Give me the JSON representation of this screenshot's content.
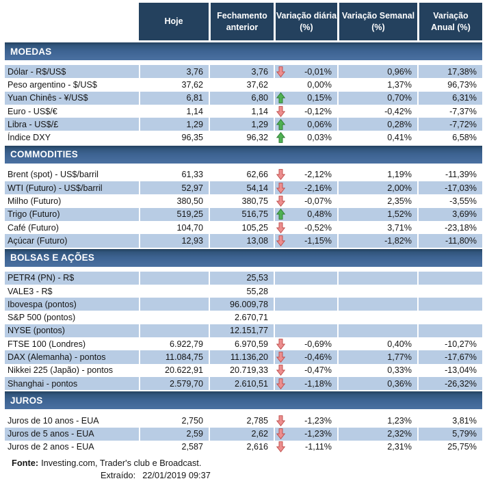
{
  "table": {
    "header": {
      "hoje": "Hoje",
      "fechamento": "Fechamento\nanterior",
      "diaria": "Variação diária\n(%)",
      "semanal": "Variação Semanal\n(%)",
      "anual": "Variação\nAnual (%)"
    }
  },
  "chart_data": {
    "type": "table",
    "columns": [
      "",
      "Hoje",
      "Fechamento anterior",
      "Variação diária (direção)",
      "Variação diária (%)",
      "Variação Semanal (%)",
      "Variação Anual (%)"
    ],
    "sections": [
      {
        "name": "MOEDAS",
        "slug": "moedas",
        "rows": [
          [
            "Dólar - R$/US$",
            "3,76",
            "3,76",
            "down",
            "-0,01%",
            "0,96%",
            "17,38%"
          ],
          [
            "Peso argentino - $/US$",
            "37,62",
            "37,62",
            "",
            "0,00%",
            "1,37%",
            "96,73%"
          ],
          [
            "Yuan Chinês - ¥/US$",
            "6,81",
            "6,80",
            "up",
            "0,15%",
            "0,70%",
            "6,31%"
          ],
          [
            "Euro - US$/€",
            "1,14",
            "1,14",
            "down",
            "-0,12%",
            "-0,42%",
            "-7,37%"
          ],
          [
            "Libra - US$/£",
            "1,29",
            "1,29",
            "up",
            "0,06%",
            "0,28%",
            "-7,72%"
          ],
          [
            "Índice DXY",
            "96,35",
            "96,32",
            "up",
            "0,03%",
            "0,41%",
            "6,58%"
          ]
        ]
      },
      {
        "name": "COMMODITIES",
        "slug": "commodities",
        "rows": [
          [
            "Brent (spot) - US$/barril",
            "61,33",
            "62,66",
            "down",
            "-2,12%",
            "1,19%",
            "-11,39%"
          ],
          [
            "WTI (Futuro) - US$/barril",
            "52,97",
            "54,14",
            "down",
            "-2,16%",
            "2,00%",
            "-17,03%"
          ],
          [
            "Milho (Futuro)",
            "380,50",
            "380,75",
            "down",
            "-0,07%",
            "2,35%",
            "-3,55%"
          ],
          [
            "Trigo (Futuro)",
            "519,25",
            "516,75",
            "up",
            "0,48%",
            "1,52%",
            "3,69%"
          ],
          [
            "Café (Futuro)",
            "104,70",
            "105,25",
            "down",
            "-0,52%",
            "3,71%",
            "-23,18%"
          ],
          [
            "Açúcar (Futuro)",
            "12,93",
            "13,08",
            "down",
            "-1,15%",
            "-1,82%",
            "-11,80%"
          ]
        ]
      },
      {
        "name": "BOLSAS E AÇÕES",
        "slug": "bolsas-e-acoes",
        "rows": [
          [
            "PETR4 (PN) - R$",
            "",
            "25,53",
            "",
            "",
            "",
            ""
          ],
          [
            "VALE3 - R$",
            "",
            "55,28",
            "",
            "",
            "",
            ""
          ],
          [
            "Ibovespa (pontos)",
            "",
            "96.009,78",
            "",
            "",
            "",
            ""
          ],
          [
            "S&P 500 (pontos)",
            "",
            "2.670,71",
            "",
            "",
            "",
            ""
          ],
          [
            "NYSE (pontos)",
            "",
            "12.151,77",
            "",
            "",
            "",
            ""
          ],
          [
            "FTSE 100 (Londres)",
            "6.922,79",
            "6.970,59",
            "down",
            "-0,69%",
            "0,40%",
            "-10,27%"
          ],
          [
            "DAX (Alemanha) - pontos",
            "11.084,75",
            "11.136,20",
            "down",
            "-0,46%",
            "1,77%",
            "-17,67%"
          ],
          [
            "Nikkei 225 (Japão) - pontos",
            "20.622,91",
            "20.719,33",
            "down",
            "-0,47%",
            "0,33%",
            "-13,04%"
          ],
          [
            "Shanghai - pontos",
            "2.579,70",
            "2.610,51",
            "down",
            "-1,18%",
            "0,36%",
            "-26,32%"
          ]
        ]
      },
      {
        "name": "JUROS",
        "slug": "juros",
        "rows": [
          [
            "Juros de 10 anos - EUA",
            "2,750",
            "2,785",
            "down",
            "-1,23%",
            "1,23%",
            "3,81%"
          ],
          [
            "Juros de 5 anos - EUA",
            "2,59",
            "2,62",
            "down",
            "-1,23%",
            "2,32%",
            "5,79%"
          ],
          [
            "Juros de 2 anos - EUA",
            "2,587",
            "2,616",
            "down",
            "-1,11%",
            "2,31%",
            "25,75%"
          ]
        ]
      }
    ]
  },
  "footer": {
    "fonte_label": "Fonte:",
    "fonte_text": "Investing.com, Trader's club e Broadcast.",
    "extraido_label": "Extraído:",
    "extraido_value": "22/01/2019 09:37"
  },
  "colors": {
    "header_bg": "#24415E",
    "section_top": "#24425F",
    "section_mid2": "#32567D",
    "section_mid": "#3D6392",
    "section_bottom": "#4A70A1",
    "row_shaded": "#B8CCE4",
    "arrow_up_fill": "#4FB153",
    "arrow_up_stroke": "#2E7A31",
    "arrow_down_fill": "#EC8E8E",
    "arrow_down_stroke": "#BE4B48"
  }
}
